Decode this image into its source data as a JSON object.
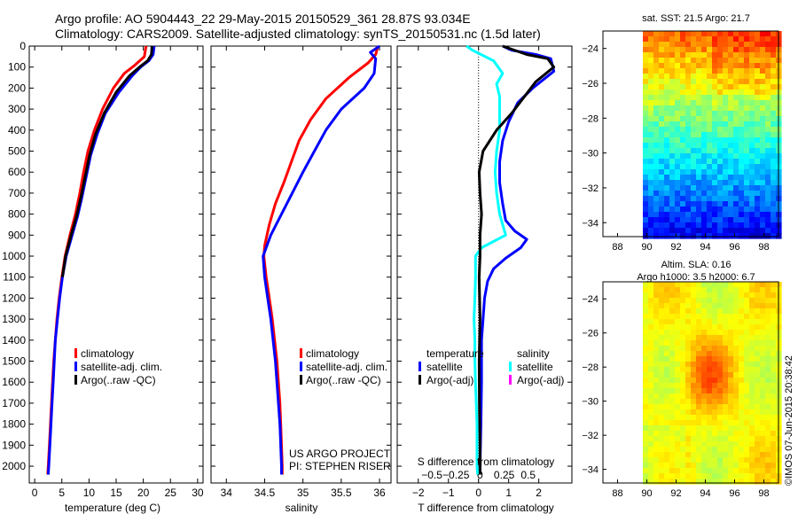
{
  "header": {
    "title1": "Argo profile: AO 5904443_22 29-May-2015 20150529_361 28.87S 93.034E",
    "title2": "Climatology: CARS2009. Satellite-adjusted climatology: synTS_20150531.nc (1.5d later)"
  },
  "colors": {
    "climatology": "#ff0000",
    "satellite": "#0000ff",
    "argo": "#000000",
    "salinity_satellite": "#00ffff",
    "salinity_argo": "#ff00ff"
  },
  "chart_data": [
    {
      "type": "line",
      "xlabel": "temperature (deg C)",
      "xlim": [
        -1,
        31
      ],
      "xticks": [
        0,
        5,
        10,
        15,
        20,
        25,
        30
      ],
      "ylim": [
        2080,
        0
      ],
      "yticks": [
        0,
        100,
        200,
        300,
        400,
        500,
        600,
        700,
        800,
        900,
        1000,
        1100,
        1200,
        1300,
        1400,
        1500,
        1600,
        1700,
        1800,
        1900,
        2000
      ],
      "legend": [
        "climatology",
        "satellite-adj. clim.",
        "Argo(..raw -QC)"
      ],
      "series": [
        {
          "name": "climatology",
          "color": "#ff0000",
          "points": [
            [
              20.5,
              0
            ],
            [
              20.2,
              50
            ],
            [
              18.5,
              90
            ],
            [
              16.5,
              130
            ],
            [
              14.5,
              200
            ],
            [
              12.5,
              300
            ],
            [
              11,
              400
            ],
            [
              9.8,
              500
            ],
            [
              9,
              600
            ],
            [
              8.3,
              700
            ],
            [
              7.5,
              800
            ],
            [
              6.5,
              900
            ],
            [
              5.6,
              1000
            ],
            [
              5,
              1100
            ],
            [
              4.5,
              1200
            ],
            [
              4.1,
              1300
            ],
            [
              3.8,
              1400
            ],
            [
              3.5,
              1500
            ],
            [
              3.3,
              1600
            ],
            [
              3.1,
              1700
            ],
            [
              2.9,
              1800
            ],
            [
              2.7,
              1900
            ],
            [
              2.5,
              2000
            ],
            [
              2.4,
              2040
            ]
          ]
        },
        {
          "name": "satellite-adj. clim.",
          "color": "#0000ff",
          "points": [
            [
              22,
              0
            ],
            [
              21.8,
              40
            ],
            [
              21,
              70
            ],
            [
              19.5,
              100
            ],
            [
              18,
              140
            ],
            [
              15.5,
              220
            ],
            [
              13,
              320
            ],
            [
              11.5,
              420
            ],
            [
              10.3,
              520
            ],
            [
              9.5,
              620
            ],
            [
              8.7,
              720
            ],
            [
              7.9,
              810
            ],
            [
              6.9,
              900
            ],
            [
              5.8,
              1000
            ],
            [
              5.1,
              1100
            ],
            [
              4.6,
              1200
            ],
            [
              4.2,
              1300
            ],
            [
              3.8,
              1400
            ],
            [
              3.6,
              1500
            ],
            [
              3.4,
              1600
            ],
            [
              3.2,
              1700
            ],
            [
              3,
              1800
            ],
            [
              2.8,
              1900
            ],
            [
              2.6,
              2000
            ],
            [
              2.5,
              2040
            ]
          ]
        },
        {
          "name": "Argo(..raw -QC)",
          "color": "#000000",
          "points": [
            [
              21.6,
              0
            ],
            [
              21.5,
              40
            ],
            [
              20.8,
              70
            ],
            [
              19.3,
              100
            ],
            [
              17.5,
              140
            ],
            [
              15,
              220
            ],
            [
              12.8,
              320
            ],
            [
              11.2,
              420
            ],
            [
              10.1,
              520
            ],
            [
              9.3,
              620
            ],
            [
              8.5,
              720
            ],
            [
              7.7,
              810
            ],
            [
              6.7,
              900
            ],
            [
              5.7,
              1000
            ],
            [
              5.1,
              1100
            ]
          ]
        }
      ]
    },
    {
      "type": "line",
      "xlabel": "salinity",
      "xlim": [
        33.8,
        36.15
      ],
      "xticks": [
        34,
        34.5,
        35,
        35.5,
        36
      ],
      "ylim": [
        2080,
        0
      ],
      "legend": [
        "climatology",
        "satellite-adj. clim.",
        "Argo(..raw -QC)"
      ],
      "series": [
        {
          "name": "climatology",
          "color": "#ff0000",
          "points": [
            [
              35.98,
              0
            ],
            [
              35.95,
              40
            ],
            [
              35.85,
              80
            ],
            [
              35.6,
              150
            ],
            [
              35.3,
              250
            ],
            [
              35.1,
              350
            ],
            [
              34.95,
              450
            ],
            [
              34.85,
              550
            ],
            [
              34.75,
              650
            ],
            [
              34.64,
              750
            ],
            [
              34.56,
              850
            ],
            [
              34.5,
              950
            ],
            [
              34.49,
              1000
            ],
            [
              34.52,
              1100
            ],
            [
              34.56,
              1200
            ],
            [
              34.6,
              1300
            ],
            [
              34.63,
              1400
            ],
            [
              34.66,
              1500
            ],
            [
              34.68,
              1600
            ],
            [
              34.7,
              1700
            ],
            [
              34.71,
              1800
            ],
            [
              34.72,
              1900
            ],
            [
              34.73,
              2000
            ],
            [
              34.73,
              2040
            ]
          ]
        },
        {
          "name": "satellite-adj. clim.",
          "color": "#0000ff",
          "points": [
            [
              36.0,
              0
            ],
            [
              35.88,
              30
            ],
            [
              35.95,
              60
            ],
            [
              35.93,
              130
            ],
            [
              35.8,
              200
            ],
            [
              35.5,
              300
            ],
            [
              35.3,
              400
            ],
            [
              35.15,
              500
            ],
            [
              35,
              600
            ],
            [
              34.86,
              700
            ],
            [
              34.72,
              800
            ],
            [
              34.58,
              900
            ],
            [
              34.48,
              1000
            ],
            [
              34.5,
              1100
            ],
            [
              34.54,
              1200
            ],
            [
              34.58,
              1300
            ],
            [
              34.61,
              1400
            ],
            [
              34.64,
              1500
            ],
            [
              34.66,
              1600
            ],
            [
              34.68,
              1700
            ],
            [
              34.7,
              1800
            ],
            [
              34.71,
              1900
            ],
            [
              34.72,
              2000
            ],
            [
              34.72,
              2040
            ]
          ]
        }
      ]
    },
    {
      "type": "line",
      "xlabel": "T difference from climatology",
      "xlim": [
        -2.7,
        3.1
      ],
      "xticks": [
        -2,
        -1,
        0,
        1,
        2
      ],
      "secondary_axis": {
        "label": "S difference from climatology",
        "ticks": [
          -0.5,
          -0.25,
          0,
          0.25,
          0.5
        ]
      },
      "ylim": [
        2080,
        0
      ],
      "legend": {
        "col1_title": "temperature",
        "col2_title": "salinity",
        "entries": [
          "satellite",
          "Argo(-adj)",
          "satellite",
          "Argo(-adj)"
        ]
      },
      "series": [
        {
          "name": "temperature satellite",
          "color": "#0000ff",
          "points": [
            [
              0.8,
              0
            ],
            [
              1.1,
              20
            ],
            [
              1.9,
              40
            ],
            [
              2.4,
              60
            ],
            [
              2.5,
              120
            ],
            [
              1.8,
              200
            ],
            [
              1.3,
              270
            ],
            [
              1.0,
              360
            ],
            [
              0.8,
              450
            ],
            [
              0.7,
              550
            ],
            [
              0.7,
              650
            ],
            [
              0.8,
              750
            ],
            [
              0.9,
              830
            ],
            [
              1.2,
              880
            ],
            [
              1.6,
              920
            ],
            [
              1.4,
              960
            ],
            [
              0.9,
              1010
            ],
            [
              0.5,
              1060
            ],
            [
              0.3,
              1120
            ],
            [
              0.2,
              1200
            ],
            [
              0.15,
              1300
            ],
            [
              0.1,
              1400
            ],
            [
              0.1,
              1600
            ],
            [
              0.08,
              1800
            ],
            [
              0.05,
              2000
            ],
            [
              0.05,
              2040
            ]
          ]
        },
        {
          "name": "salinity satellite",
          "color": "#00ffff",
          "points": [
            [
              -0.4,
              0
            ],
            [
              -0.2,
              20
            ],
            [
              0.5,
              70
            ],
            [
              0.8,
              130
            ],
            [
              0.6,
              180
            ],
            [
              0.7,
              240
            ],
            [
              0.7,
              400
            ],
            [
              0.6,
              500
            ],
            [
              0.55,
              600
            ],
            [
              0.6,
              700
            ],
            [
              0.7,
              800
            ],
            [
              0.9,
              900
            ],
            [
              0.1,
              960
            ],
            [
              -0.1,
              1000
            ],
            [
              -0.1,
              1100
            ],
            [
              -0.12,
              1200
            ],
            [
              -0.15,
              1300
            ],
            [
              -0.12,
              1400
            ],
            [
              -0.12,
              1500
            ],
            [
              -0.1,
              1600
            ],
            [
              -0.05,
              1800
            ],
            [
              -0.05,
              2000
            ],
            [
              -0.03,
              2040
            ]
          ]
        },
        {
          "name": "temperature Argo(-adj)",
          "color": "#000000",
          "points": [
            [
              0.8,
              0
            ],
            [
              1.6,
              40
            ],
            [
              2.3,
              60
            ],
            [
              2.5,
              100
            ],
            [
              1.9,
              170
            ],
            [
              1.1,
              320
            ],
            [
              0.6,
              400
            ],
            [
              0.15,
              500
            ],
            [
              0.02,
              600
            ],
            [
              0.05,
              700
            ],
            [
              0.1,
              800
            ],
            [
              0.05,
              900
            ],
            [
              0.05,
              1000
            ],
            [
              0.02,
              1100
            ],
            [
              0.05,
              1300
            ],
            [
              0.02,
              1500
            ],
            [
              0.03,
              1700
            ],
            [
              0.05,
              1900
            ],
            [
              0.05,
              2040
            ]
          ]
        }
      ]
    }
  ],
  "maps": [
    {
      "title": "sat. SST: 21.5  Argo: 21.7",
      "xticks": [
        "88",
        "90",
        "92",
        "94",
        "96",
        "98"
      ],
      "yticks": [
        "-24",
        "-26",
        "-28",
        "-30",
        "-32",
        "-34"
      ],
      "colormap": "jet"
    },
    {
      "title1": "Altim. SLA: 0.16",
      "title2": "Argo h1000: 3.5 h2000: 6.7",
      "xticks": [
        "88",
        "90",
        "92",
        "94",
        "96",
        "98"
      ],
      "yticks": [
        "-24",
        "-26",
        "-28",
        "-30",
        "-32",
        "-34"
      ],
      "colormap": "jet"
    }
  ],
  "project": {
    "line1": "US ARGO PROJECT",
    "line2": "PI: STEPHEN RISER"
  },
  "stamp": "©IMOS 07-Jun-2015 20:38:42"
}
